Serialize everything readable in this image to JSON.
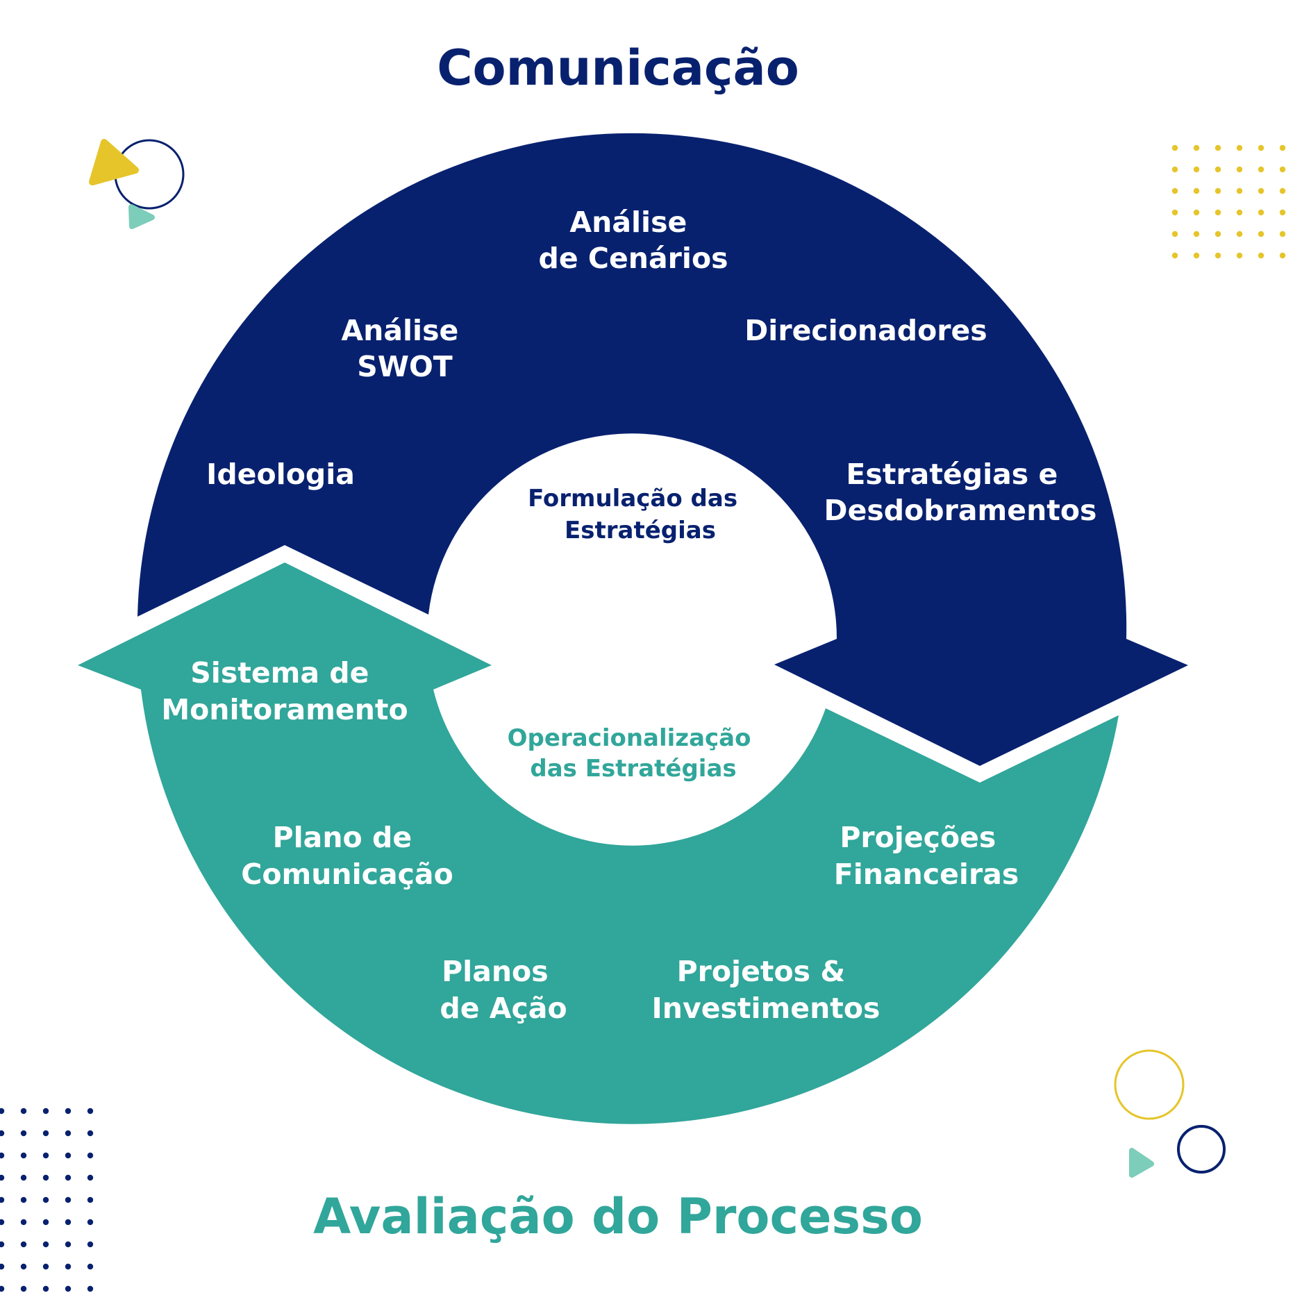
{
  "title_top": "Comunicação",
  "title_bottom": "Avaliação do Processo",
  "colors": {
    "navy": "#08216f",
    "teal": "#31a69a",
    "yellow": "#e5c52a",
    "mint": "#7ccdb9",
    "white": "#ffffff"
  },
  "center": {
    "top_line1": "Formulação das",
    "top_line2": "Estratégias",
    "bottom_line1": "Operacionalização",
    "bottom_line2": "das Estratégias"
  },
  "navy_ring": {
    "analise_cenarios": [
      "Análise",
      "de Cenários"
    ],
    "analise_swot": [
      "Análise",
      "SWOT"
    ],
    "direcionadores": [
      "Direcionadores"
    ],
    "ideologia": [
      "Ideologia"
    ],
    "estrategias": [
      "Estratégias e",
      "Desdobramentos"
    ]
  },
  "teal_ring": {
    "sistema_monitoramento": [
      "Sistema de",
      "Monitoramento"
    ],
    "plano_comunicacao": [
      "Plano de",
      "Comunicação"
    ],
    "planos_acao": [
      "Planos",
      "de Ação"
    ],
    "projetos": [
      "Projetos &",
      "Investimentos"
    ],
    "projecoes": [
      "Projeções",
      "Financeiras"
    ]
  }
}
